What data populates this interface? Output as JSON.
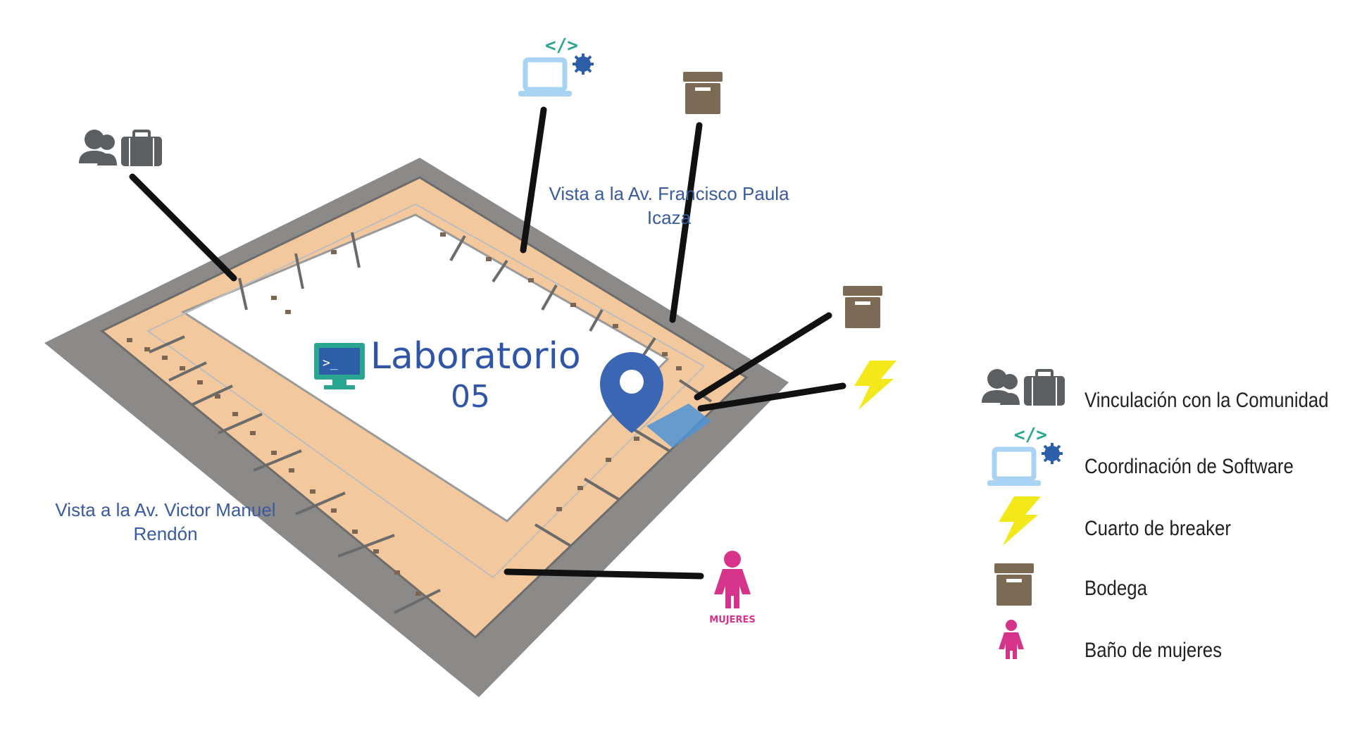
{
  "map": {
    "title_line1": "Laboratorio",
    "title_line2": "05",
    "street_top": "Vista a la Av.  Francisco Paula Icaza",
    "street_left": "Vista a la Av.  Victor Manuel Rendón",
    "mujeres_label": "MUJERES",
    "icons": [
      "community-briefcase-icon",
      "software-laptop-icon",
      "storage-box-icon",
      "breaker-lightning-icon",
      "womens-restroom-icon",
      "terminal-monitor-icon",
      "location-pin-icon"
    ]
  },
  "legend": {
    "items": [
      {
        "label": "Vinculación con la Comunidad",
        "icon": "community-briefcase-icon"
      },
      {
        "label": "Coordinación de Software",
        "icon": "software-laptop-icon"
      },
      {
        "label": "Cuarto de breaker",
        "icon": "breaker-lightning-icon"
      },
      {
        "label": "Bodega",
        "icon": "storage-box-icon"
      },
      {
        "label": "Baño de mujeres",
        "icon": "womens-restroom-icon"
      }
    ]
  },
  "colors": {
    "wall": "#8c8a89",
    "floor": "#f5c69a",
    "courtyard": "#ffffff",
    "leader_line": "#111111",
    "brand_blue": "#3155a6",
    "pin_blue": "#3a66b3",
    "teal": "#2aa58f",
    "light_blue": "#a9d3f2",
    "box_brown": "#7d6a55",
    "lightning_yellow": "#f2e81a",
    "pink": "#d6338b"
  }
}
